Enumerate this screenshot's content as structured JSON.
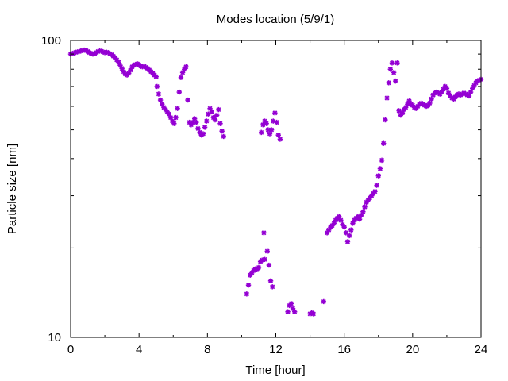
{
  "chart_data": {
    "type": "scatter",
    "title": "Modes location (5/9/1)",
    "xlabel": "Time [hour]",
    "ylabel": "Particle size [nm]",
    "xlim": [
      0,
      24
    ],
    "ylim": [
      10,
      100
    ],
    "yscale": "log",
    "xticks": [
      0,
      4,
      8,
      12,
      16,
      20,
      24
    ],
    "yticks": [
      10,
      100
    ],
    "marker": "star",
    "grid": false,
    "legend": "none",
    "color": "#9400d3",
    "points": [
      [
        0.0,
        90.0
      ],
      [
        0.1,
        90.3
      ],
      [
        0.2,
        90.8
      ],
      [
        0.3,
        91.2
      ],
      [
        0.4,
        91.5
      ],
      [
        0.5,
        91.8
      ],
      [
        0.6,
        92.2
      ],
      [
        0.7,
        92.5
      ],
      [
        0.8,
        92.8
      ],
      [
        0.9,
        92.5
      ],
      [
        1.0,
        91.8
      ],
      [
        1.1,
        91.0
      ],
      [
        1.2,
        90.5
      ],
      [
        1.3,
        90.0
      ],
      [
        1.4,
        90.2
      ],
      [
        1.5,
        91.0
      ],
      [
        1.6,
        91.8
      ],
      [
        1.7,
        92.2
      ],
      [
        1.8,
        92.0
      ],
      [
        1.9,
        91.5
      ],
      [
        2.0,
        91.0
      ],
      [
        2.1,
        91.3
      ],
      [
        2.2,
        91.0
      ],
      [
        2.3,
        90.2
      ],
      [
        2.4,
        89.5
      ],
      [
        2.5,
        88.5
      ],
      [
        2.6,
        87.5
      ],
      [
        2.7,
        86.0
      ],
      [
        2.8,
        84.5
      ],
      [
        2.9,
        82.5
      ],
      [
        3.0,
        80.5
      ],
      [
        3.1,
        78.5
      ],
      [
        3.2,
        77.0
      ],
      [
        3.3,
        76.5
      ],
      [
        3.4,
        77.5
      ],
      [
        3.5,
        79.5
      ],
      [
        3.6,
        81.5
      ],
      [
        3.7,
        82.5
      ],
      [
        3.8,
        83.0
      ],
      [
        3.9,
        83.5
      ],
      [
        4.0,
        82.8
      ],
      [
        4.1,
        82.0
      ],
      [
        4.2,
        81.5
      ],
      [
        4.3,
        81.8
      ],
      [
        4.4,
        81.2
      ],
      [
        4.5,
        80.5
      ],
      [
        4.6,
        79.5
      ],
      [
        4.7,
        78.5
      ],
      [
        4.8,
        77.5
      ],
      [
        4.9,
        76.5
      ],
      [
        5.0,
        75.5
      ],
      [
        5.05,
        70.0
      ],
      [
        5.15,
        66.0
      ],
      [
        5.25,
        63.0
      ],
      [
        5.35,
        61.0
      ],
      [
        5.45,
        59.5
      ],
      [
        5.55,
        58.5
      ],
      [
        5.65,
        57.5
      ],
      [
        5.75,
        56.5
      ],
      [
        5.85,
        55.0
      ],
      [
        5.95,
        53.5
      ],
      [
        6.05,
        52.5
      ],
      [
        6.15,
        55.0
      ],
      [
        6.25,
        59.0
      ],
      [
        6.35,
        67.0
      ],
      [
        6.45,
        75.0
      ],
      [
        6.55,
        78.0
      ],
      [
        6.65,
        80.0
      ],
      [
        6.75,
        81.5
      ],
      [
        6.85,
        63.0
      ],
      [
        6.95,
        53.0
      ],
      [
        7.05,
        52.0
      ],
      [
        7.15,
        53.0
      ],
      [
        7.25,
        54.5
      ],
      [
        7.35,
        53.0
      ],
      [
        7.45,
        50.5
      ],
      [
        7.55,
        49.0
      ],
      [
        7.65,
        48.0
      ],
      [
        7.75,
        48.5
      ],
      [
        7.85,
        51.0
      ],
      [
        7.95,
        53.5
      ],
      [
        8.05,
        56.5
      ],
      [
        8.15,
        59.0
      ],
      [
        8.25,
        57.5
      ],
      [
        8.35,
        55.0
      ],
      [
        8.45,
        54.0
      ],
      [
        8.55,
        56.0
      ],
      [
        8.65,
        58.5
      ],
      [
        8.75,
        52.5
      ],
      [
        8.85,
        49.5
      ],
      [
        8.95,
        47.5
      ],
      [
        10.3,
        14.0
      ],
      [
        10.4,
        15.0
      ],
      [
        10.5,
        16.2
      ],
      [
        10.6,
        16.5
      ],
      [
        10.7,
        16.8
      ],
      [
        10.8,
        17.0
      ],
      [
        10.9,
        16.9
      ],
      [
        11.0,
        17.2
      ],
      [
        11.1,
        18.0
      ],
      [
        11.2,
        18.2
      ],
      [
        11.3,
        22.5
      ],
      [
        11.35,
        18.3
      ],
      [
        11.15,
        49.0
      ],
      [
        11.25,
        52.0
      ],
      [
        11.35,
        53.5
      ],
      [
        11.45,
        52.5
      ],
      [
        11.55,
        50.0
      ],
      [
        11.65,
        48.5
      ],
      [
        11.75,
        50.0
      ],
      [
        11.85,
        53.5
      ],
      [
        11.95,
        57.0
      ],
      [
        12.05,
        53.0
      ],
      [
        12.15,
        48.0
      ],
      [
        12.25,
        46.5
      ],
      [
        11.5,
        19.5
      ],
      [
        11.6,
        17.5
      ],
      [
        11.7,
        15.5
      ],
      [
        11.8,
        14.8
      ],
      [
        12.7,
        12.2
      ],
      [
        12.8,
        12.8
      ],
      [
        12.9,
        13.0
      ],
      [
        13.0,
        12.5
      ],
      [
        13.1,
        12.2
      ],
      [
        14.0,
        12.0
      ],
      [
        14.1,
        12.1
      ],
      [
        14.2,
        12.0
      ],
      [
        14.8,
        13.2
      ],
      [
        15.0,
        22.5
      ],
      [
        15.1,
        23.0
      ],
      [
        15.2,
        23.5
      ],
      [
        15.3,
        23.8
      ],
      [
        15.4,
        24.2
      ],
      [
        15.5,
        24.8
      ],
      [
        15.6,
        25.2
      ],
      [
        15.7,
        25.5
      ],
      [
        15.8,
        24.8
      ],
      [
        15.9,
        24.0
      ],
      [
        16.0,
        23.5
      ],
      [
        16.1,
        22.5
      ],
      [
        16.2,
        21.0
      ],
      [
        16.3,
        22.0
      ],
      [
        16.4,
        23.0
      ],
      [
        16.5,
        24.2
      ],
      [
        16.6,
        24.8
      ],
      [
        16.7,
        25.2
      ],
      [
        16.8,
        25.5
      ],
      [
        16.9,
        25.0
      ],
      [
        17.0,
        25.8
      ],
      [
        17.1,
        26.5
      ],
      [
        17.2,
        27.5
      ],
      [
        17.3,
        28.5
      ],
      [
        17.4,
        29.0
      ],
      [
        17.5,
        29.5
      ],
      [
        17.6,
        30.0
      ],
      [
        17.7,
        30.5
      ],
      [
        17.8,
        31.0
      ],
      [
        17.9,
        32.5
      ],
      [
        18.0,
        35.0
      ],
      [
        18.1,
        37.0
      ],
      [
        18.2,
        39.5
      ],
      [
        18.3,
        45.0
      ],
      [
        18.4,
        54.0
      ],
      [
        18.5,
        64.0
      ],
      [
        18.6,
        72.0
      ],
      [
        18.7,
        80.0
      ],
      [
        18.8,
        84.0
      ],
      [
        18.9,
        78.0
      ],
      [
        19.0,
        73.0
      ],
      [
        19.1,
        84.0
      ],
      [
        19.2,
        58.0
      ],
      [
        19.3,
        56.0
      ],
      [
        19.4,
        57.0
      ],
      [
        19.5,
        58.5
      ],
      [
        19.6,
        59.5
      ],
      [
        19.7,
        61.0
      ],
      [
        19.8,
        62.5
      ],
      [
        19.9,
        61.0
      ],
      [
        20.0,
        60.5
      ],
      [
        20.1,
        59.5
      ],
      [
        20.2,
        59.0
      ],
      [
        20.3,
        60.0
      ],
      [
        20.4,
        61.0
      ],
      [
        20.5,
        61.5
      ],
      [
        20.6,
        61.0
      ],
      [
        20.7,
        60.5
      ],
      [
        20.8,
        60.0
      ],
      [
        20.9,
        60.5
      ],
      [
        21.0,
        61.5
      ],
      [
        21.1,
        63.5
      ],
      [
        21.2,
        65.5
      ],
      [
        21.3,
        66.5
      ],
      [
        21.4,
        67.0
      ],
      [
        21.5,
        66.5
      ],
      [
        21.6,
        66.0
      ],
      [
        21.7,
        67.0
      ],
      [
        21.8,
        68.5
      ],
      [
        21.9,
        70.0
      ],
      [
        22.0,
        69.0
      ],
      [
        22.1,
        66.5
      ],
      [
        22.2,
        65.0
      ],
      [
        22.3,
        64.0
      ],
      [
        22.4,
        63.5
      ],
      [
        22.5,
        64.5
      ],
      [
        22.6,
        65.5
      ],
      [
        22.7,
        66.0
      ],
      [
        22.8,
        65.5
      ],
      [
        22.9,
        66.0
      ],
      [
        23.0,
        66.5
      ],
      [
        23.1,
        66.0
      ],
      [
        23.2,
        65.5
      ],
      [
        23.3,
        65.0
      ],
      [
        23.4,
        67.0
      ],
      [
        23.5,
        69.0
      ],
      [
        23.6,
        70.5
      ],
      [
        23.7,
        72.0
      ],
      [
        23.8,
        73.0
      ],
      [
        23.9,
        73.5
      ],
      [
        24.0,
        74.0
      ]
    ]
  }
}
